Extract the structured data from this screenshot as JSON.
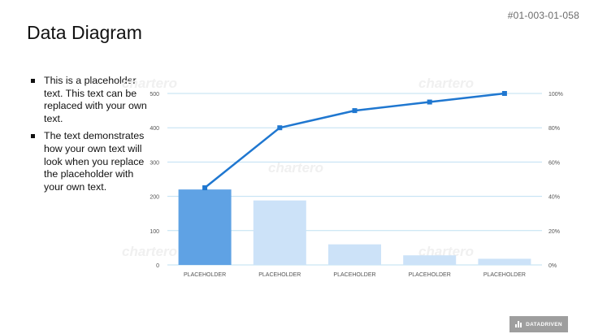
{
  "slide": {
    "id": "#01-003-01-058",
    "title": "Data Diagram",
    "bullets": [
      "This is a placeholder text. This text can be replaced with your own text.",
      "The text demonstrates how your own text will look when you replace the placeholder with your own text."
    ],
    "watermark": "chartero",
    "logo_text": "DATADRIVEN"
  },
  "colors": {
    "bar_highlight": "#5fa2e4",
    "bar_light": "#cce2f8",
    "line": "#1f77d0",
    "grid": "#bfe0f2",
    "axis_text": "#555555"
  },
  "chart_data": {
    "type": "bar",
    "categories": [
      "PLACEHOLDER",
      "PLACEHOLDER",
      "PLACEHOLDER",
      "PLACEHOLDER",
      "PLACEHOLDER"
    ],
    "series": [
      {
        "type": "bar",
        "values": [
          220,
          188,
          60,
          28,
          18
        ]
      },
      {
        "type": "line",
        "axis": "right",
        "values": [
          45,
          80,
          90,
          95,
          100
        ]
      }
    ],
    "ylim": [
      0,
      500
    ],
    "yticks": [
      0,
      100,
      200,
      300,
      400,
      500
    ],
    "y2lim": [
      0,
      100
    ],
    "y2ticks": [
      "0%",
      "20%",
      "40%",
      "60%",
      "80%",
      "100%"
    ],
    "highlight_index": 0,
    "grid": true
  }
}
